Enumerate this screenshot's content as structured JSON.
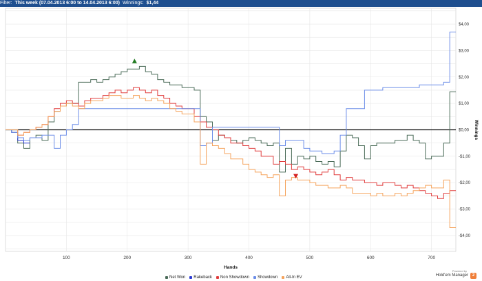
{
  "filter": {
    "label": "Filter:",
    "value": "This week (07.04.2013 6:00 to 14.04.2013 6:00)",
    "winnings_label": "Winnings:",
    "winnings_value": "$1,44"
  },
  "brand": {
    "powered": "Powered by",
    "name": "Hold'em Manager",
    "logo_glyph": "2"
  },
  "chart_data": {
    "type": "line",
    "xlabel": "Hands",
    "ylabel": "Winnings",
    "xlim": [
      0,
      740
    ],
    "ylim": [
      -4.6,
      4.6
    ],
    "xticks": [
      100,
      200,
      300,
      400,
      500,
      600,
      700
    ],
    "yticks": [
      4,
      3,
      2,
      1,
      0,
      -1,
      -2,
      -3,
      -4
    ],
    "ytick_labels": [
      "$4,00",
      "$3,00",
      "$2,00",
      "$1,00",
      "$0,00",
      "-$1,00",
      "-$2,00",
      "-$3,00",
      "-$4,00"
    ],
    "grid": true,
    "legend_position": "bottom",
    "zero_line_color": "#000000",
    "series": [
      {
        "name": "Net Won",
        "color": "#4a6b58",
        "x": [
          0,
          10,
          20,
          30,
          40,
          50,
          60,
          70,
          80,
          90,
          100,
          110,
          120,
          130,
          140,
          150,
          160,
          170,
          180,
          190,
          200,
          210,
          220,
          230,
          240,
          250,
          260,
          270,
          280,
          290,
          300,
          310,
          320,
          330,
          340,
          350,
          360,
          370,
          380,
          390,
          400,
          410,
          420,
          430,
          440,
          450,
          460,
          470,
          480,
          490,
          500,
          510,
          520,
          530,
          540,
          550,
          560,
          570,
          580,
          590,
          600,
          610,
          620,
          630,
          640,
          650,
          660,
          670,
          680,
          690,
          700,
          710,
          720,
          730,
          740
        ],
        "y": [
          0,
          -0.1,
          -0.5,
          -0.7,
          -0.3,
          -0.2,
          -0.4,
          0.3,
          0.7,
          0.9,
          1.0,
          1.0,
          1.8,
          1.8,
          1.9,
          1.8,
          1.9,
          2.0,
          2.1,
          2.2,
          2.3,
          2.3,
          2.4,
          2.2,
          2.1,
          1.9,
          1.8,
          1.7,
          1.7,
          1.6,
          1.6,
          1.5,
          0.5,
          0.3,
          -0.4,
          -0.2,
          -0.3,
          -0.4,
          -0.5,
          -0.4,
          -0.3,
          -0.4,
          -0.5,
          -0.6,
          -0.5,
          -1.6,
          -0.7,
          -1.3,
          -1.0,
          -1.1,
          -1.0,
          -1.2,
          -1.3,
          -1.2,
          -1.4,
          -0.8,
          -0.2,
          -0.3,
          -0.6,
          -1.1,
          -0.6,
          -0.5,
          -0.5,
          -0.5,
          -0.4,
          -0.4,
          -0.2,
          -0.4,
          -0.5,
          -1.1,
          -1.0,
          -1.0,
          -0.5,
          1.44,
          1.44
        ]
      },
      {
        "name": "Rakeback",
        "color": "#2c3bd4",
        "x": [
          0,
          10,
          20,
          30,
          40
        ],
        "y": [
          0,
          -0.1,
          -0.4,
          -0.5,
          -0.5
        ]
      },
      {
        "name": "Non Showdown",
        "color": "#e03c3c",
        "x": [
          0,
          10,
          20,
          30,
          40,
          50,
          60,
          70,
          80,
          90,
          100,
          110,
          120,
          130,
          140,
          150,
          160,
          170,
          180,
          190,
          200,
          210,
          220,
          230,
          240,
          250,
          260,
          270,
          280,
          290,
          300,
          310,
          320,
          330,
          340,
          350,
          360,
          370,
          380,
          390,
          400,
          410,
          420,
          430,
          440,
          450,
          460,
          470,
          480,
          490,
          500,
          510,
          520,
          530,
          540,
          550,
          560,
          570,
          580,
          590,
          600,
          610,
          620,
          630,
          640,
          650,
          660,
          670,
          680,
          690,
          700,
          710,
          720,
          730,
          740
        ],
        "y": [
          0,
          0,
          -0.2,
          -0.1,
          0,
          0.1,
          0.2,
          0.5,
          0.8,
          1.0,
          1.1,
          1.0,
          0.9,
          1.1,
          1.2,
          1.2,
          1.3,
          1.4,
          1.5,
          1.4,
          1.5,
          1.6,
          1.5,
          1.4,
          1.5,
          1.3,
          1.2,
          1.0,
          0.9,
          0.8,
          0.8,
          0.5,
          0.3,
          0.1,
          0,
          -0.2,
          -0.3,
          -0.5,
          -0.5,
          -0.6,
          -0.7,
          -0.8,
          -1.0,
          -1.0,
          -1.3,
          -1.2,
          -1.3,
          -1.5,
          -1.4,
          -1.5,
          -1.6,
          -1.7,
          -1.6,
          -1.5,
          -1.7,
          -1.9,
          -1.8,
          -1.9,
          -1.9,
          -2.0,
          -2.0,
          -2.1,
          -2.0,
          -2.0,
          -2.1,
          -2.2,
          -2.1,
          -2.2,
          -2.3,
          -2.4,
          -2.5,
          -2.6,
          -2.4,
          -2.3,
          -2.3
        ]
      },
      {
        "name": "Showdown",
        "color": "#6b8de8",
        "x": [
          0,
          10,
          20,
          30,
          40,
          50,
          60,
          70,
          80,
          90,
          100,
          110,
          120,
          130,
          140,
          150,
          160,
          170,
          180,
          190,
          200,
          210,
          220,
          230,
          240,
          250,
          260,
          270,
          280,
          290,
          300,
          310,
          320,
          330,
          340,
          350,
          360,
          370,
          380,
          390,
          400,
          410,
          420,
          430,
          440,
          450,
          460,
          470,
          480,
          490,
          500,
          510,
          520,
          530,
          540,
          550,
          560,
          570,
          580,
          590,
          600,
          610,
          620,
          630,
          640,
          650,
          660,
          670,
          680,
          690,
          700,
          710,
          720,
          730,
          740
        ],
        "y": [
          0,
          -0.1,
          -0.3,
          -0.4,
          -0.3,
          -0.3,
          -0.2,
          -0.2,
          -0.7,
          -0.2,
          0,
          0.2,
          0.8,
          0.8,
          0.8,
          0.8,
          0.8,
          0.8,
          0.8,
          0.8,
          0.8,
          0.8,
          0.8,
          0.8,
          0.8,
          0.8,
          0.8,
          0.8,
          0.8,
          0.8,
          0.8,
          0.8,
          -0.6,
          -0.5,
          0.1,
          0.1,
          0.1,
          0.1,
          0.1,
          0.1,
          0.1,
          0.1,
          0.1,
          0.1,
          0.1,
          -0.6,
          -0.4,
          -0.4,
          -0.4,
          -0.7,
          -0.8,
          -0.8,
          -0.9,
          -0.9,
          -0.8,
          -0.2,
          0.8,
          0.8,
          0.8,
          1.5,
          1.5,
          1.5,
          1.6,
          1.6,
          1.6,
          1.6,
          1.6,
          1.6,
          1.7,
          1.7,
          1.7,
          1.7,
          1.8,
          3.7,
          3.7
        ]
      },
      {
        "name": "All-In EV",
        "color": "#f5a35c",
        "x": [
          0,
          10,
          20,
          30,
          40,
          50,
          60,
          70,
          80,
          90,
          100,
          110,
          120,
          130,
          140,
          150,
          160,
          170,
          180,
          190,
          200,
          210,
          220,
          230,
          240,
          250,
          260,
          270,
          280,
          290,
          300,
          310,
          320,
          330,
          340,
          350,
          360,
          370,
          380,
          390,
          400,
          410,
          420,
          430,
          440,
          450,
          460,
          470,
          480,
          490,
          500,
          510,
          520,
          530,
          540,
          550,
          560,
          570,
          580,
          590,
          600,
          610,
          620,
          630,
          640,
          650,
          660,
          670,
          680,
          690,
          700,
          710,
          720,
          730,
          740
        ],
        "y": [
          0,
          0,
          -0.2,
          -0.1,
          0,
          0.1,
          0.2,
          0.5,
          0.7,
          0.9,
          1.0,
          0.9,
          0.8,
          1.0,
          1.1,
          1.1,
          1.2,
          1.3,
          1.3,
          1.2,
          1.2,
          1.3,
          1.2,
          1.1,
          1.2,
          1.1,
          1.0,
          0.8,
          0.7,
          0.6,
          0.6,
          0.3,
          -1.3,
          -0.5,
          -0.6,
          -0.7,
          -0.9,
          -1.1,
          -1.1,
          -1.3,
          -1.5,
          -1.6,
          -1.7,
          -1.8,
          -1.7,
          -2.5,
          -1.9,
          -1.8,
          -1.9,
          -1.9,
          -2.0,
          -2.1,
          -2.1,
          -2.2,
          -2.2,
          -2.1,
          -2.2,
          -2.4,
          -2.4,
          -2.4,
          -2.5,
          -2.4,
          -2.5,
          -2.5,
          -2.4,
          -2.5,
          -2.4,
          -2.3,
          -2.2,
          -2.1,
          -2.2,
          -2.2,
          -1.9,
          -3.7,
          -3.7
        ]
      }
    ],
    "markers": [
      {
        "type": "max",
        "series": "Net Won",
        "x": 212,
        "y": 2.6,
        "color": "#1f7a1f"
      },
      {
        "type": "min",
        "series": "Net Won",
        "x": 477,
        "y": -1.75,
        "color": "#d42020"
      }
    ]
  }
}
